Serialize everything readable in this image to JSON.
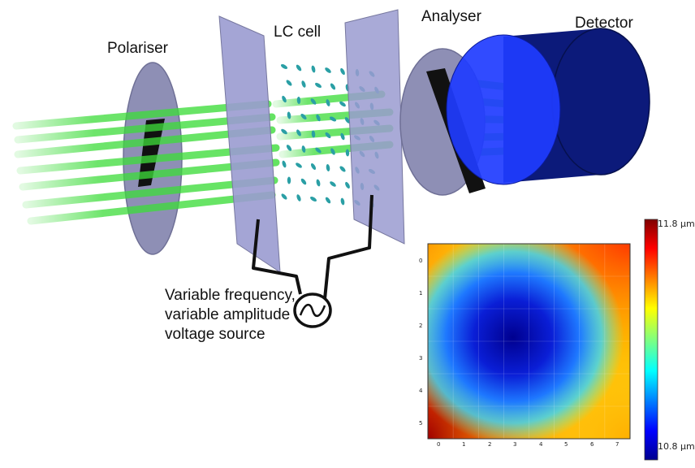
{
  "labels": {
    "polariser": "Polariser",
    "lc_cell": "LC cell",
    "analyser": "Analyser",
    "detector": "Detector",
    "source_line1": "Variable frequency,",
    "source_line2": "variable amplitude",
    "source_line3": "voltage source"
  },
  "heatmap": {
    "x_ticks": [
      "0",
      "1",
      "2",
      "3",
      "4",
      "5",
      "6",
      "7"
    ],
    "y_ticks": [
      "0",
      "1",
      "2",
      "3",
      "4",
      "5"
    ],
    "colorbar_max": "11.8 µm",
    "colorbar_min": "10.8 µm"
  },
  "colors": {
    "beam": "#3ddc3a",
    "plate": "#9a9bd0",
    "detector_front": "#1f3cff",
    "detector_body": "#0c1a7a",
    "molecule": "#2a9fa5"
  }
}
